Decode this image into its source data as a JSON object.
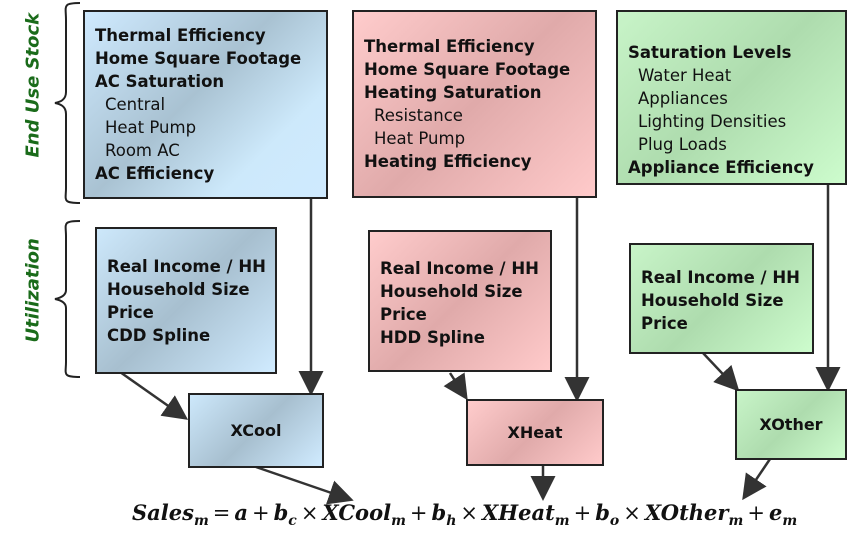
{
  "labels": {
    "stock": "End Use Stock",
    "utilization": "Utilization"
  },
  "cool": {
    "stock": [
      {
        "text": "Thermal Efficiency",
        "bold": true
      },
      {
        "text": "Home Square Footage",
        "bold": true
      },
      {
        "text": "AC Saturation",
        "bold": true
      },
      {
        "text": "Central",
        "bold": false
      },
      {
        "text": "Heat Pump",
        "bold": false
      },
      {
        "text": "Room AC",
        "bold": false
      },
      {
        "text": "AC Efficiency",
        "bold": true
      }
    ],
    "util": [
      "Real Income / HH",
      "Household Size",
      "Price",
      "CDD Spline"
    ],
    "node": "XCool"
  },
  "heat": {
    "stock": [
      {
        "text": "Thermal Efficiency",
        "bold": true
      },
      {
        "text": "Home Square Footage",
        "bold": true
      },
      {
        "text": "Heating Saturation",
        "bold": true
      },
      {
        "text": "Resistance",
        "bold": false
      },
      {
        "text": "Heat Pump",
        "bold": false
      },
      {
        "text": "Heating Efficiency",
        "bold": true
      }
    ],
    "util": [
      "Real Income / HH",
      "Household Size",
      "Price",
      "HDD Spline"
    ],
    "node": "XHeat"
  },
  "other": {
    "stock": [
      {
        "text": "Saturation Levels",
        "bold": true
      },
      {
        "text": "Water Heat",
        "bold": false
      },
      {
        "text": "Appliances",
        "bold": false
      },
      {
        "text": "Lighting Densities",
        "bold": false
      },
      {
        "text": "Plug Loads",
        "bold": false
      },
      {
        "text": "Appliance Efficiency",
        "bold": true
      }
    ],
    "util": [
      "Real Income / HH",
      "Household Size",
      "Price"
    ],
    "node": "XOther"
  },
  "equation": {
    "sales": "Sales",
    "m": "m",
    "eq": "=",
    "a": "a",
    "plus": "+",
    "times": "×",
    "b": "b",
    "c": "c",
    "h": "h",
    "o": "o",
    "xcool": "XCool",
    "xheat": "XHeat",
    "xother": "XOther",
    "e": "e"
  },
  "colors": {
    "cool": "#cfeaff",
    "heat": "#ffcccc",
    "other": "#c8f4c8",
    "label": "#1a6b1a"
  }
}
